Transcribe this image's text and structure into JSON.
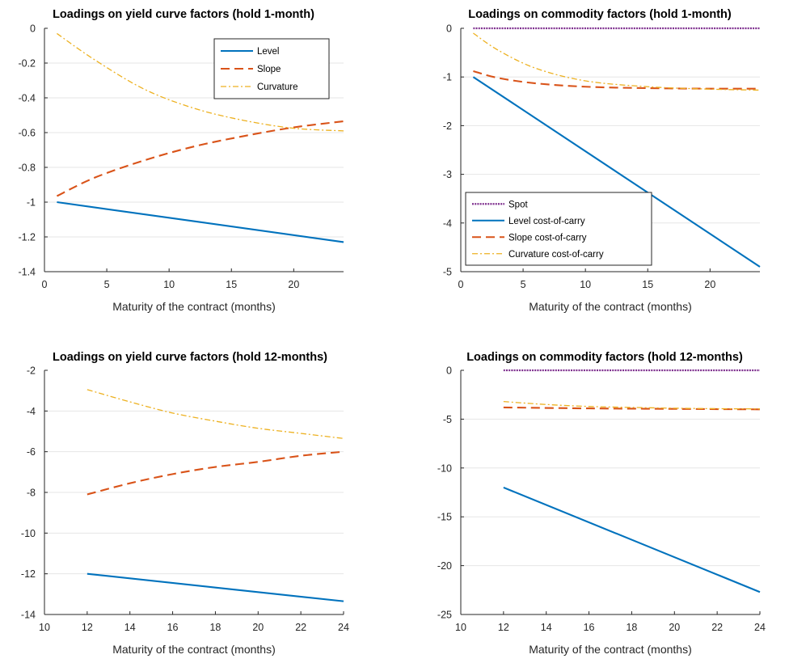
{
  "chart_data": [
    {
      "type": "line",
      "title": "Loadings on yield curve factors (hold 1-month)",
      "xlabel": "Maturity of the contract (months)",
      "ylabel": "",
      "xlim": [
        0,
        24
      ],
      "ylim": [
        -1.4,
        0
      ],
      "xticks": [
        0,
        5,
        10,
        15,
        20
      ],
      "yticks": [
        0,
        -0.2,
        -0.4,
        -0.6,
        -0.8,
        -1,
        -1.2,
        -1.4
      ],
      "grid": "horizontal",
      "legend_position": "top-right",
      "series": [
        {
          "name": "Level",
          "style": "solid",
          "color": "#0072BD",
          "x": [
            1,
            24
          ],
          "y": [
            -1.0,
            -1.23
          ]
        },
        {
          "name": "Slope",
          "style": "dashed",
          "color": "#D95319",
          "x": [
            1,
            4,
            8,
            12,
            16,
            20,
            24
          ],
          "y": [
            -0.965,
            -0.86,
            -0.76,
            -0.68,
            -0.62,
            -0.57,
            -0.535
          ]
        },
        {
          "name": "Curvature",
          "style": "dashdot",
          "color": "#EDB120",
          "x": [
            1,
            4,
            8,
            12,
            16,
            20,
            24
          ],
          "y": [
            -0.03,
            -0.18,
            -0.35,
            -0.46,
            -0.53,
            -0.575,
            -0.59
          ]
        }
      ]
    },
    {
      "type": "line",
      "title": "Loadings on commodity factors (hold 1-month)",
      "xlabel": "Maturity of the contract (months)",
      "ylabel": "",
      "xlim": [
        0,
        24
      ],
      "ylim": [
        -5,
        0
      ],
      "xticks": [
        0,
        5,
        10,
        15,
        20
      ],
      "yticks": [
        0,
        -1,
        -2,
        -3,
        -4,
        -5
      ],
      "grid": "horizontal",
      "legend_position": "bottom-left",
      "series": [
        {
          "name": "Spot",
          "style": "dotted",
          "color": "#7E2F8E",
          "x": [
            1,
            24
          ],
          "y": [
            0,
            0
          ]
        },
        {
          "name": "Level cost-of-carry",
          "style": "solid",
          "color": "#0072BD",
          "x": [
            1,
            24
          ],
          "y": [
            -1.0,
            -4.9
          ]
        },
        {
          "name": "Slope cost-of-carry",
          "style": "dashed",
          "color": "#D95319",
          "x": [
            1,
            3,
            6,
            10,
            15,
            20,
            24
          ],
          "y": [
            -0.88,
            -1.02,
            -1.13,
            -1.2,
            -1.23,
            -1.24,
            -1.24
          ]
        },
        {
          "name": "Curvature cost-of-carry",
          "style": "dashdot",
          "color": "#EDB120",
          "x": [
            1,
            3,
            6,
            10,
            15,
            20,
            24
          ],
          "y": [
            -0.1,
            -0.45,
            -0.82,
            -1.08,
            -1.2,
            -1.25,
            -1.27
          ]
        }
      ]
    },
    {
      "type": "line",
      "title": "Loadings on yield curve factors (hold 12-months)",
      "xlabel": "Maturity of the contract (months)",
      "ylabel": "",
      "xlim": [
        10,
        24
      ],
      "ylim": [
        -14,
        -2
      ],
      "xticks": [
        10,
        12,
        14,
        16,
        18,
        20,
        22,
        24
      ],
      "yticks": [
        -2,
        -4,
        -6,
        -8,
        -10,
        -12,
        -14
      ],
      "grid": "horizontal",
      "legend_position": "none",
      "series": [
        {
          "name": "",
          "style": "solid",
          "color": "#0072BD",
          "x": [
            12,
            24
          ],
          "y": [
            -12.0,
            -13.35
          ]
        },
        {
          "name": "",
          "style": "dashed",
          "color": "#D95319",
          "x": [
            12,
            14,
            16,
            18,
            20,
            22,
            24
          ],
          "y": [
            -8.1,
            -7.55,
            -7.1,
            -6.75,
            -6.5,
            -6.2,
            -6.0
          ]
        },
        {
          "name": "",
          "style": "dashdot",
          "color": "#EDB120",
          "x": [
            12,
            14,
            16,
            18,
            20,
            22,
            24
          ],
          "y": [
            -2.95,
            -3.55,
            -4.1,
            -4.5,
            -4.85,
            -5.1,
            -5.35
          ]
        }
      ]
    },
    {
      "type": "line",
      "title": "Loadings on commodity factors (hold 12-months)",
      "xlabel": "Maturity of the contract (months)",
      "ylabel": "",
      "xlim": [
        10,
        24
      ],
      "ylim": [
        -25,
        0
      ],
      "xticks": [
        10,
        12,
        14,
        16,
        18,
        20,
        22,
        24
      ],
      "yticks": [
        0,
        -5,
        -10,
        -15,
        -20,
        -25
      ],
      "grid": "horizontal",
      "legend_position": "none",
      "series": [
        {
          "name": "",
          "style": "dotted",
          "color": "#7E2F8E",
          "x": [
            12,
            24
          ],
          "y": [
            0,
            0
          ]
        },
        {
          "name": "",
          "style": "solid",
          "color": "#0072BD",
          "x": [
            12,
            24
          ],
          "y": [
            -12.0,
            -22.7
          ]
        },
        {
          "name": "",
          "style": "dashed",
          "color": "#D95319",
          "x": [
            12,
            16,
            20,
            24
          ],
          "y": [
            -3.8,
            -3.9,
            -3.95,
            -4.0
          ]
        },
        {
          "name": "",
          "style": "dashdot",
          "color": "#EDB120",
          "x": [
            12,
            14,
            16,
            18,
            20,
            22,
            24
          ],
          "y": [
            -3.2,
            -3.5,
            -3.7,
            -3.8,
            -3.88,
            -3.93,
            -3.95
          ]
        }
      ]
    }
  ]
}
